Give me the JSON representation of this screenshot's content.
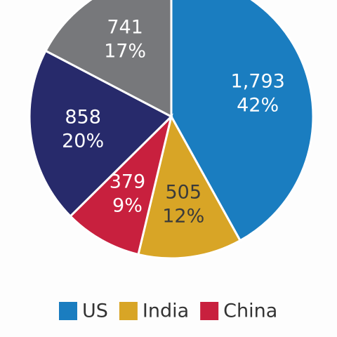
{
  "chart_data": {
    "type": "pie",
    "categories": [
      "US",
      "India",
      "China",
      null,
      null
    ],
    "values": [
      1793,
      505,
      379,
      858,
      741
    ],
    "value_labels": [
      "1,793",
      "505",
      "379",
      "858",
      "741"
    ],
    "percents": [
      42,
      12,
      9,
      20,
      17
    ],
    "percent_labels": [
      "42%",
      "12%",
      "9%",
      "20%",
      "17%"
    ],
    "colors": [
      "#1a7dc0",
      "#d8a526",
      "#c8203e",
      "#272a6b",
      "#77787b"
    ],
    "label_colors": [
      "#ffffff",
      "#3a3a3a",
      "#ffffff",
      "#ffffff",
      "#ffffff"
    ]
  }
}
